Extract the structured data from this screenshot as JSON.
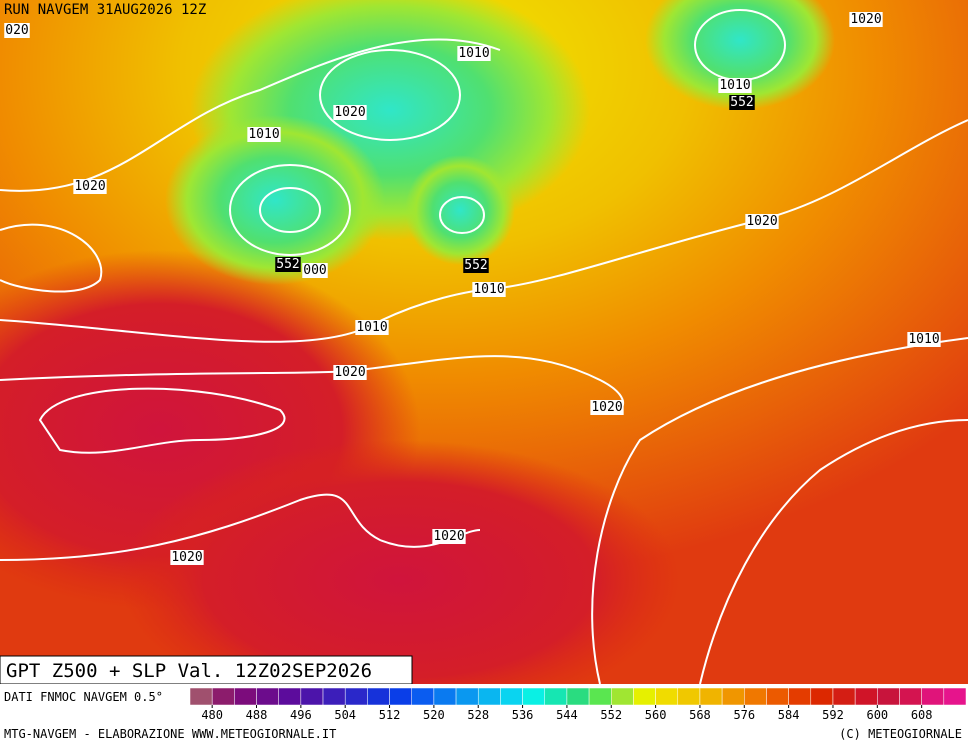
{
  "header": {
    "title": "RUN NAVGEM 31AUG2026 12Z"
  },
  "map": {
    "isobar_labels": [
      "020",
      "1010",
      "1020",
      "1020",
      "1010",
      "552",
      "1010",
      "1020",
      "1020",
      "552",
      "000",
      "552",
      "1010",
      "1010",
      "1010",
      "1020",
      "1020",
      "1020",
      "1020"
    ]
  },
  "caption": "GPT Z500 + SLP Val. 12Z02SEP2026",
  "legend": {
    "source": "DATI FNMOC NAVGEM 0.5°",
    "colorbar": {
      "range": [
        476,
        616
      ],
      "ticks": [
        480,
        488,
        496,
        504,
        512,
        520,
        528,
        536,
        544,
        552,
        560,
        568,
        576,
        584,
        592,
        600,
        608
      ],
      "colors": [
        "#a0506e",
        "#8c1c6c",
        "#7c0c7c",
        "#6c0c8c",
        "#5c0c9c",
        "#4c14aa",
        "#3c1eba",
        "#2a28ca",
        "#1632da",
        "#0a3ee8",
        "#0a5cf0",
        "#0a7af0",
        "#0a98f0",
        "#0ab6f0",
        "#0ad4f0",
        "#0af0e4",
        "#16e6b2",
        "#2adc80",
        "#5ae650",
        "#a0e632",
        "#e6f000",
        "#f0dc00",
        "#f0c800",
        "#f0b400",
        "#f09600",
        "#f07800",
        "#ec5a00",
        "#e43c00",
        "#dc2800",
        "#d41e14",
        "#d01428",
        "#c8143c",
        "#d41450",
        "#e0147a",
        "#e6148c"
      ]
    }
  },
  "footer": {
    "left": "MTG-NAVGEM - ELABORAZIONE WWW.METEOGIORNALE.IT",
    "right": "(C) METEOGIORNALE"
  }
}
